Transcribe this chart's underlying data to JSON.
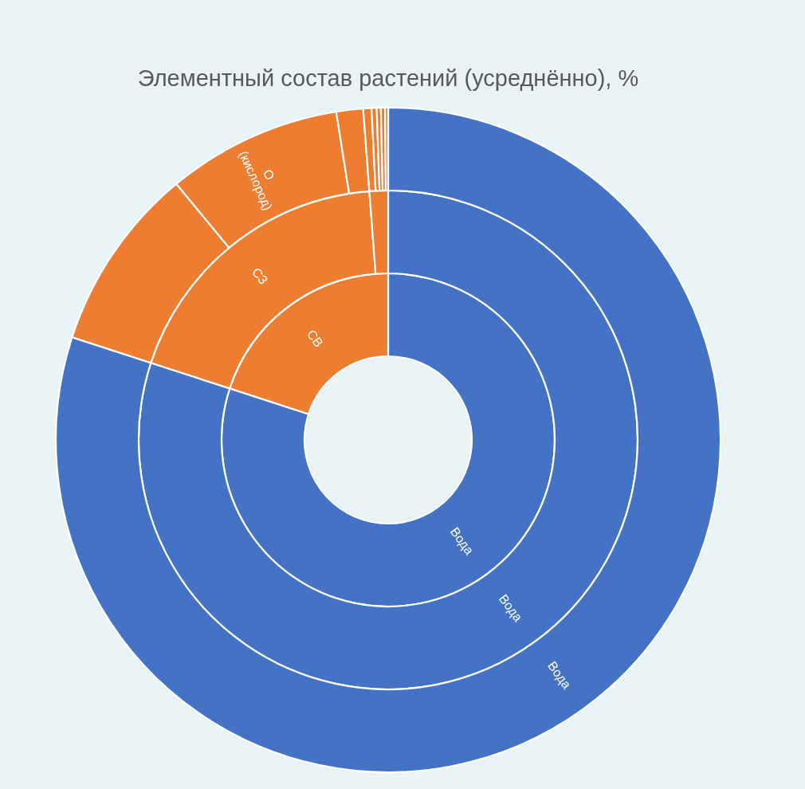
{
  "chart_data": {
    "type": "donut",
    "title": "Элементный состав растений (усреднённо), %",
    "series": [
      {
        "values": [
          80,
          20
        ],
        "colors": [
          "#4472c4",
          "#ed7d31"
        ],
        "value_labels": [
          "Вода",
          "СВ"
        ]
      },
      {
        "values": [
          80,
          18.8,
          1.2
        ],
        "colors": [
          "#4472c4",
          "#ed7d31",
          "#ed7d31"
        ],
        "value_labels": [
          "Вода",
          "СЗ",
          null
        ]
      },
      {
        "values": [
          80,
          9.0,
          8.5,
          1.3,
          0.4,
          0.25,
          0.2,
          0.2,
          0.15
        ],
        "colors": [
          "#4472c4",
          "#ed7d31",
          "#ed7d31",
          "#ed7d31",
          "#ed7d31",
          "#ed7d31",
          "#ed7d31",
          "#ed7d31",
          "#ed7d31"
        ],
        "value_labels": [
          "Вода",
          null,
          "O (кислород)",
          null,
          null,
          null,
          null,
          null,
          null
        ]
      }
    ]
  }
}
